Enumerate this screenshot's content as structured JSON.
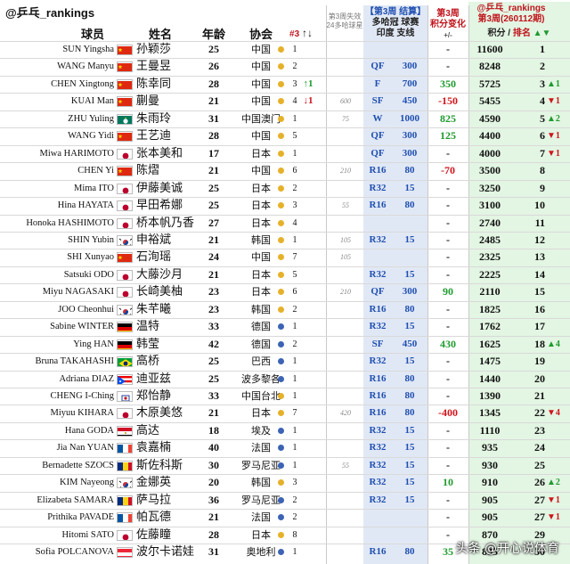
{
  "handle": "@乒乓_rankings",
  "headers": {
    "player": "球员",
    "name_cn": "姓名",
    "age": "年龄",
    "assoc": "协会",
    "seed": "#3",
    "seed_arrows": "↑↓",
    "pts24_line1": "第3周失效",
    "pts24_line2": "24多哈球星",
    "event_line1": "【第3周 结算】",
    "event_line2": "多哈冠 球赛",
    "event_line3": "印度 支线",
    "change_line1": "第3周",
    "change_line2": "积分变化",
    "change_line3": "+/-",
    "right_line1": "@乒乓_rankings",
    "right_line2": "第3周(260112期)",
    "points": "积分",
    "rank": "排名",
    "rank_arrows": "▲▼"
  },
  "rows": [
    {
      "en": "SUN Yingsha",
      "cn": "孙颖莎",
      "flag": "CN",
      "age": "25",
      "assoc": "中国",
      "dot": "#e6b12a",
      "seed": "1",
      "arrow": "",
      "arrow_dir": "",
      "p24": "",
      "res": "",
      "rpts": "",
      "chg": "-",
      "chg_dir": "",
      "pts": "11600",
      "rank": "1",
      "mv": "",
      "mv_dir": ""
    },
    {
      "en": "WANG Manyu",
      "cn": "王曼昱",
      "flag": "CN",
      "age": "26",
      "assoc": "中国",
      "dot": "#e6b12a",
      "seed": "2",
      "arrow": "",
      "arrow_dir": "",
      "p24": "",
      "res": "QF",
      "rpts": "300",
      "chg": "-",
      "chg_dir": "",
      "pts": "8248",
      "rank": "2",
      "mv": "",
      "mv_dir": ""
    },
    {
      "en": "CHEN Xingtong",
      "cn": "陈幸同",
      "flag": "CN",
      "age": "28",
      "assoc": "中国",
      "dot": "#e6b12a",
      "seed": "3",
      "arrow": "↑1",
      "arrow_dir": "up",
      "p24": "",
      "res": "F",
      "rpts": "700",
      "chg": "350",
      "chg_dir": "up",
      "pts": "5725",
      "rank": "3",
      "mv": "▲1",
      "mv_dir": "up"
    },
    {
      "en": "KUAI Man",
      "cn": "蒯曼",
      "flag": "CN",
      "age": "21",
      "assoc": "中国",
      "dot": "#e6b12a",
      "seed": "4",
      "arrow": "↓1",
      "arrow_dir": "dn",
      "p24": "600",
      "res": "SF",
      "rpts": "450",
      "chg": "-150",
      "chg_dir": "dn",
      "pts": "5455",
      "rank": "4",
      "mv": "▼1",
      "mv_dir": "dn"
    },
    {
      "en": "ZHU Yuling",
      "cn": "朱雨玲",
      "flag": "MO",
      "age": "31",
      "assoc": "中国澳门",
      "dot": "#e6b12a",
      "seed": "1",
      "arrow": "",
      "arrow_dir": "",
      "p24": "75",
      "res": "W",
      "rpts": "1000",
      "chg": "825",
      "chg_dir": "up",
      "pts": "4590",
      "rank": "5",
      "mv": "▲2",
      "mv_dir": "up"
    },
    {
      "en": "WANG Yidi",
      "cn": "王艺迪",
      "flag": "CN",
      "age": "28",
      "assoc": "中国",
      "dot": "#e6b12a",
      "seed": "5",
      "arrow": "",
      "arrow_dir": "",
      "p24": "",
      "res": "QF",
      "rpts": "300",
      "chg": "125",
      "chg_dir": "up",
      "pts": "4400",
      "rank": "6",
      "mv": "▼1",
      "mv_dir": "dn"
    },
    {
      "en": "Miwa HARIMOTO",
      "cn": "张本美和",
      "flag": "JP",
      "age": "17",
      "assoc": "日本",
      "dot": "#e6b12a",
      "seed": "1",
      "arrow": "",
      "arrow_dir": "",
      "p24": "",
      "res": "QF",
      "rpts": "300",
      "chg": "-",
      "chg_dir": "",
      "pts": "4000",
      "rank": "7",
      "mv": "▼1",
      "mv_dir": "dn"
    },
    {
      "en": "CHEN Yi",
      "cn": "陈熠",
      "flag": "CN",
      "age": "21",
      "assoc": "中国",
      "dot": "#e6b12a",
      "seed": "6",
      "arrow": "",
      "arrow_dir": "",
      "p24": "210",
      "res": "R16",
      "rpts": "80",
      "chg": "-70",
      "chg_dir": "dn",
      "pts": "3500",
      "rank": "8",
      "mv": "",
      "mv_dir": ""
    },
    {
      "en": "Mima ITO",
      "cn": "伊藤美诚",
      "flag": "JP",
      "age": "25",
      "assoc": "日本",
      "dot": "#e6b12a",
      "seed": "2",
      "arrow": "",
      "arrow_dir": "",
      "p24": "",
      "res": "R32",
      "rpts": "15",
      "chg": "-",
      "chg_dir": "",
      "pts": "3250",
      "rank": "9",
      "mv": "",
      "mv_dir": ""
    },
    {
      "en": "Hina HAYATA",
      "cn": "早田希娜",
      "flag": "JP",
      "age": "25",
      "assoc": "日本",
      "dot": "#e6b12a",
      "seed": "3",
      "arrow": "",
      "arrow_dir": "",
      "p24": "55",
      "res": "R16",
      "rpts": "80",
      "chg": "-",
      "chg_dir": "",
      "pts": "3100",
      "rank": "10",
      "mv": "",
      "mv_dir": ""
    },
    {
      "en": "Honoka HASHIMOTO",
      "cn": "桥本帆乃香",
      "flag": "JP",
      "age": "27",
      "assoc": "日本",
      "dot": "#e6b12a",
      "seed": "4",
      "arrow": "",
      "arrow_dir": "",
      "p24": "",
      "res": "",
      "rpts": "",
      "chg": "-",
      "chg_dir": "",
      "pts": "2740",
      "rank": "11",
      "mv": "",
      "mv_dir": ""
    },
    {
      "en": "SHIN Yubin",
      "cn": "申裕斌",
      "flag": "KR",
      "age": "21",
      "assoc": "韩国",
      "dot": "#e6b12a",
      "seed": "1",
      "arrow": "",
      "arrow_dir": "",
      "p24": "105",
      "res": "R32",
      "rpts": "15",
      "chg": "-",
      "chg_dir": "",
      "pts": "2485",
      "rank": "12",
      "mv": "",
      "mv_dir": ""
    },
    {
      "en": "SHI Xunyao",
      "cn": "石洵瑶",
      "flag": "CN",
      "age": "24",
      "assoc": "中国",
      "dot": "#e6b12a",
      "seed": "7",
      "arrow": "",
      "arrow_dir": "",
      "p24": "105",
      "res": "",
      "rpts": "",
      "chg": "-",
      "chg_dir": "",
      "pts": "2325",
      "rank": "13",
      "mv": "",
      "mv_dir": ""
    },
    {
      "en": "Satsuki ODO",
      "cn": "大藤沙月",
      "flag": "JP",
      "age": "21",
      "assoc": "日本",
      "dot": "#e6b12a",
      "seed": "5",
      "arrow": "",
      "arrow_dir": "",
      "p24": "",
      "res": "R32",
      "rpts": "15",
      "chg": "-",
      "chg_dir": "",
      "pts": "2225",
      "rank": "14",
      "mv": "",
      "mv_dir": ""
    },
    {
      "en": "Miyu NAGASAKI",
      "cn": "长崎美柚",
      "flag": "JP",
      "age": "23",
      "assoc": "日本",
      "dot": "#e6b12a",
      "seed": "6",
      "arrow": "",
      "arrow_dir": "",
      "p24": "210",
      "res": "QF",
      "rpts": "300",
      "chg": "90",
      "chg_dir": "up",
      "pts": "2110",
      "rank": "15",
      "mv": "",
      "mv_dir": ""
    },
    {
      "en": "JOO Cheonhui",
      "cn": "朱芊曦",
      "flag": "KR",
      "age": "23",
      "assoc": "韩国",
      "dot": "#e6b12a",
      "seed": "2",
      "arrow": "",
      "arrow_dir": "",
      "p24": "",
      "res": "R16",
      "rpts": "80",
      "chg": "-",
      "chg_dir": "",
      "pts": "1825",
      "rank": "16",
      "mv": "",
      "mv_dir": ""
    },
    {
      "en": "Sabine WINTER",
      "cn": "温特",
      "flag": "DE",
      "age": "33",
      "assoc": "德国",
      "dot": "#3c63b5",
      "seed": "1",
      "arrow": "",
      "arrow_dir": "",
      "p24": "",
      "res": "R32",
      "rpts": "15",
      "chg": "-",
      "chg_dir": "",
      "pts": "1762",
      "rank": "17",
      "mv": "",
      "mv_dir": ""
    },
    {
      "en": "Ying HAN",
      "cn": "韩莹",
      "flag": "DE",
      "age": "42",
      "assoc": "德国",
      "dot": "#3c63b5",
      "seed": "2",
      "arrow": "",
      "arrow_dir": "",
      "p24": "",
      "res": "SF",
      "rpts": "450",
      "chg": "430",
      "chg_dir": "up",
      "pts": "1625",
      "rank": "18",
      "mv": "▲4",
      "mv_dir": "up"
    },
    {
      "en": "Bruna TAKAHASHI",
      "cn": "高桥",
      "flag": "BR",
      "age": "25",
      "assoc": "巴西",
      "dot": "#3c63b5",
      "seed": "1",
      "arrow": "",
      "arrow_dir": "",
      "p24": "",
      "res": "R32",
      "rpts": "15",
      "chg": "-",
      "chg_dir": "",
      "pts": "1475",
      "rank": "19",
      "mv": "",
      "mv_dir": ""
    },
    {
      "en": "Adriana DIAZ",
      "cn": "迪亚兹",
      "flag": "PR",
      "age": "25",
      "assoc": "波多黎各",
      "dot": "#3c63b5",
      "seed": "1",
      "arrow": "",
      "arrow_dir": "",
      "p24": "",
      "res": "R16",
      "rpts": "80",
      "chg": "-",
      "chg_dir": "",
      "pts": "1440",
      "rank": "20",
      "mv": "",
      "mv_dir": ""
    },
    {
      "en": "CHENG I-Ching",
      "cn": "郑怡静",
      "flag": "TW",
      "age": "33",
      "assoc": "中国台北",
      "dot": "#e6b12a",
      "seed": "1",
      "arrow": "",
      "arrow_dir": "",
      "p24": "",
      "res": "R16",
      "rpts": "80",
      "chg": "-",
      "chg_dir": "",
      "pts": "1390",
      "rank": "21",
      "mv": "",
      "mv_dir": ""
    },
    {
      "en": "Miyuu KIHARA",
      "cn": "木原美悠",
      "flag": "JP",
      "age": "21",
      "assoc": "日本",
      "dot": "#e6b12a",
      "seed": "7",
      "arrow": "",
      "arrow_dir": "",
      "p24": "420",
      "res": "R16",
      "rpts": "80",
      "chg": "-400",
      "chg_dir": "dn",
      "pts": "1345",
      "rank": "22",
      "mv": "▼4",
      "mv_dir": "dn"
    },
    {
      "en": "Hana GODA",
      "cn": "高达",
      "flag": "EG",
      "age": "18",
      "assoc": "埃及",
      "dot": "#3c63b5",
      "seed": "1",
      "arrow": "",
      "arrow_dir": "",
      "p24": "",
      "res": "R32",
      "rpts": "15",
      "chg": "-",
      "chg_dir": "",
      "pts": "1110",
      "rank": "23",
      "mv": "",
      "mv_dir": ""
    },
    {
      "en": "Jia Nan YUAN",
      "cn": "袁嘉楠",
      "flag": "FR",
      "age": "40",
      "assoc": "法国",
      "dot": "#3c63b5",
      "seed": "1",
      "arrow": "",
      "arrow_dir": "",
      "p24": "",
      "res": "R32",
      "rpts": "15",
      "chg": "-",
      "chg_dir": "",
      "pts": "935",
      "rank": "24",
      "mv": "",
      "mv_dir": ""
    },
    {
      "en": "Bernadette SZOCS",
      "cn": "斯佐科斯",
      "flag": "RO",
      "age": "30",
      "assoc": "罗马尼亚",
      "dot": "#3c63b5",
      "seed": "1",
      "arrow": "",
      "arrow_dir": "",
      "p24": "55",
      "res": "R32",
      "rpts": "15",
      "chg": "-",
      "chg_dir": "",
      "pts": "930",
      "rank": "25",
      "mv": "",
      "mv_dir": ""
    },
    {
      "en": "KIM Nayeong",
      "cn": "金娜英",
      "flag": "KR",
      "age": "20",
      "assoc": "韩国",
      "dot": "#e6b12a",
      "seed": "3",
      "arrow": "",
      "arrow_dir": "",
      "p24": "",
      "res": "R32",
      "rpts": "15",
      "chg": "10",
      "chg_dir": "up",
      "pts": "910",
      "rank": "26",
      "mv": "▲2",
      "mv_dir": "up"
    },
    {
      "en": "Elizabeta SAMARA",
      "cn": "萨马拉",
      "flag": "RO",
      "age": "36",
      "assoc": "罗马尼亚",
      "dot": "#3c63b5",
      "seed": "2",
      "arrow": "",
      "arrow_dir": "",
      "p24": "",
      "res": "R32",
      "rpts": "15",
      "chg": "-",
      "chg_dir": "",
      "pts": "905",
      "rank": "27",
      "mv": "▼1",
      "mv_dir": "dn"
    },
    {
      "en": "Prithika PAVADE",
      "cn": "帕瓦德",
      "flag": "FR",
      "age": "21",
      "assoc": "法国",
      "dot": "#3c63b5",
      "seed": "2",
      "arrow": "",
      "arrow_dir": "",
      "p24": "",
      "res": "",
      "rpts": "",
      "chg": "-",
      "chg_dir": "",
      "pts": "905",
      "rank": "27",
      "mv": "▼1",
      "mv_dir": "dn"
    },
    {
      "en": "Hitomi SATO",
      "cn": "佐藤瞳",
      "flag": "JP",
      "age": "28",
      "assoc": "日本",
      "dot": "#e6b12a",
      "seed": "8",
      "arrow": "",
      "arrow_dir": "",
      "p24": "",
      "res": "",
      "rpts": "",
      "chg": "-",
      "chg_dir": "",
      "pts": "870",
      "rank": "29",
      "mv": "",
      "mv_dir": ""
    },
    {
      "en": "Sofia POLCANOVA",
      "cn": "波尔卡诺娃",
      "flag": "AT",
      "age": "31",
      "assoc": "奥地利",
      "dot": "#3c63b5",
      "seed": "1",
      "arrow": "",
      "arrow_dir": "",
      "p24": "",
      "res": "R16",
      "rpts": "80",
      "chg": "35",
      "chg_dir": "up",
      "pts": "835",
      "rank": "30",
      "mv": "",
      "mv_dir": ""
    }
  ],
  "watermark": "头条 @开心说体育"
}
